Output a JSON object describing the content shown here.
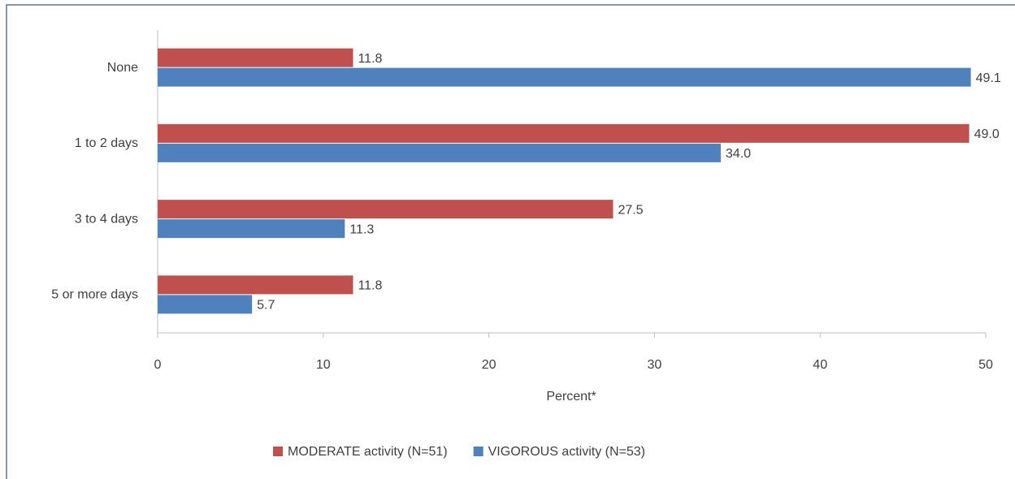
{
  "chart_data": {
    "type": "barh",
    "categories": [
      "None",
      "1 to 2 days",
      "3 to 4 days",
      "5 or more days"
    ],
    "series": [
      {
        "name": "MODERATE activity (N=51)",
        "color": "#c0504d",
        "values": [
          11.8,
          49,
          27.5,
          11.8
        ],
        "value_labels": [
          "11.8",
          "49.0",
          "27.5",
          "11.8"
        ]
      },
      {
        "name": "VIGOROUS activity (N=53)",
        "color": "#4f81bd",
        "values": [
          49.1,
          34,
          11.3,
          5.7
        ],
        "value_labels": [
          "49.1",
          "34.0",
          "11.3",
          "5.7"
        ]
      }
    ],
    "xlim": [
      0,
      50
    ],
    "xticks": [
      0,
      10,
      20,
      30,
      40,
      50
    ],
    "x_label": "Percent*",
    "legend": "bottom"
  }
}
